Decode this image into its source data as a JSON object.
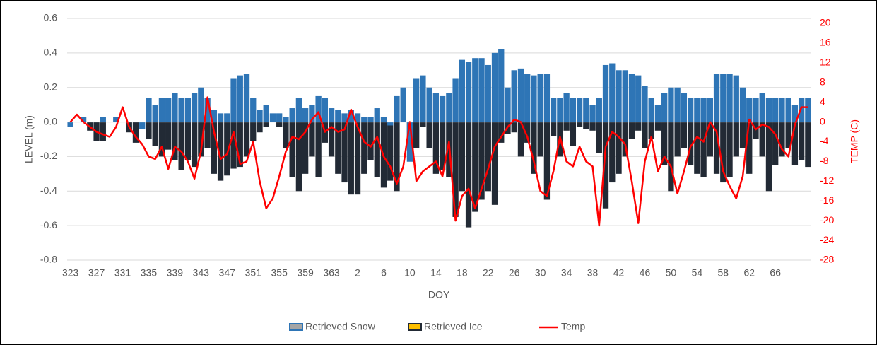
{
  "chart_data": {
    "type": "bar-line",
    "x_label": "DOY",
    "y_label": "LEVEL (m)",
    "y2_label": "TEMP (C)",
    "categories": [
      323,
      null,
      null,
      null,
      327,
      null,
      null,
      null,
      331,
      null,
      null,
      null,
      335,
      null,
      null,
      null,
      339,
      null,
      null,
      null,
      343,
      null,
      null,
      null,
      347,
      null,
      null,
      null,
      351,
      null,
      null,
      null,
      355,
      null,
      null,
      null,
      359,
      null,
      null,
      null,
      363,
      null,
      null,
      null,
      2,
      null,
      null,
      null,
      6,
      null,
      null,
      null,
      10,
      null,
      null,
      null,
      14,
      null,
      null,
      null,
      18,
      null,
      null,
      null,
      22,
      null,
      null,
      null,
      26,
      null,
      null,
      null,
      30,
      null,
      null,
      null,
      34,
      null,
      null,
      null,
      38,
      null,
      null,
      null,
      42,
      null,
      null,
      null,
      46,
      null,
      null,
      null,
      50,
      null,
      null,
      null,
      54,
      null,
      null,
      null,
      58,
      null,
      null,
      null,
      62,
      null,
      null,
      null,
      66,
      null,
      null,
      null,
      null,
      null
    ],
    "series": [
      {
        "name": "Retrieved Snow",
        "color": "#2e75b6",
        "kind": "bar",
        "values": [
          -0.03,
          0,
          0.03,
          0,
          0,
          0.03,
          0,
          0.03,
          0,
          0,
          0,
          -0.04,
          0.14,
          0.1,
          0.14,
          0.14,
          0.17,
          0.14,
          0.14,
          0.17,
          0.2,
          0.14,
          0.07,
          0.05,
          0.05,
          0.25,
          0.27,
          0.28,
          0.14,
          0.07,
          0.1,
          0.05,
          0.05,
          0.03,
          0.08,
          0.14,
          0.08,
          0.1,
          0.15,
          0.14,
          0.08,
          0.07,
          0.05,
          0.07,
          0.05,
          0.03,
          0.03,
          0.08,
          0.03,
          -0.02,
          0.15,
          0.2,
          -0.23,
          0.25,
          0.27,
          0.2,
          0.17,
          0.15,
          0.17,
          0.25,
          0.36,
          0.35,
          0.37,
          0.37,
          0.33,
          0.4,
          0.42,
          0.2,
          0.3,
          0.31,
          0.28,
          0.27,
          0.28,
          0.28,
          0.14,
          0.14,
          0.17,
          0.14,
          0.14,
          0.14,
          0.1,
          0.14,
          0.33,
          0.34,
          0.3,
          0.3,
          0.28,
          0.27,
          0.21,
          0.14,
          0.1,
          0.17,
          0.2,
          0.2,
          0.17,
          0.14,
          0.14,
          0.14,
          0.14,
          0.28,
          0.28,
          0.28,
          0.27,
          0.2,
          0.14,
          0.14,
          0.17,
          0.14,
          0.14,
          0.14,
          0.14,
          0.1,
          0.14,
          0.14
        ]
      },
      {
        "name": "Retrieved Ice",
        "color": "#222a35",
        "kind": "bar",
        "values": [
          0,
          0,
          0,
          -0.05,
          -0.11,
          -0.11,
          0,
          0,
          0,
          -0.06,
          -0.12,
          0,
          -0.1,
          -0.14,
          -0.2,
          -0.16,
          -0.22,
          -0.28,
          -0.22,
          -0.26,
          -0.2,
          -0.15,
          -0.3,
          -0.34,
          -0.31,
          -0.27,
          -0.26,
          -0.2,
          -0.11,
          -0.06,
          -0.03,
          0,
          -0.03,
          -0.15,
          -0.32,
          -0.4,
          -0.3,
          -0.2,
          -0.32,
          -0.12,
          -0.2,
          -0.3,
          -0.35,
          -0.42,
          -0.42,
          -0.3,
          -0.22,
          -0.32,
          -0.38,
          -0.34,
          -0.4,
          0,
          -0.1,
          -0.15,
          -0.03,
          -0.15,
          -0.3,
          -0.28,
          -0.32,
          -0.55,
          -0.4,
          -0.61,
          -0.52,
          -0.45,
          -0.4,
          -0.48,
          -0.12,
          -0.07,
          -0.06,
          -0.2,
          -0.12,
          -0.3,
          -0.2,
          -0.45,
          -0.08,
          -0.2,
          -0.05,
          -0.14,
          -0.03,
          -0.04,
          -0.05,
          -0.18,
          -0.5,
          -0.35,
          -0.3,
          -0.2,
          -0.1,
          -0.05,
          -0.15,
          -0.1,
          -0.05,
          -0.25,
          -0.4,
          -0.2,
          -0.15,
          -0.25,
          -0.3,
          -0.32,
          -0.2,
          -0.3,
          -0.35,
          -0.32,
          -0.2,
          -0.15,
          -0.3,
          -0.1,
          -0.2,
          -0.4,
          -0.25,
          -0.2,
          -0.15,
          -0.25,
          -0.22,
          -0.26
        ]
      },
      {
        "name": "Temp",
        "color": "#ff0000",
        "kind": "line",
        "axis": "y2",
        "values": [
          0,
          1.5,
          0,
          -1,
          -2,
          -2.5,
          -3,
          -1,
          3,
          -1,
          -3,
          -4.5,
          -7,
          -7.5,
          -5,
          -9.5,
          -5,
          -6,
          -8,
          -11.5,
          -6,
          5,
          -2,
          -7.5,
          -6.5,
          -2,
          -8.5,
          -8,
          -4,
          -12,
          -17.5,
          -15.5,
          -11,
          -6,
          -3,
          -3.5,
          -2,
          0.5,
          2,
          -2,
          -1,
          -2,
          -1.5,
          2.5,
          -1,
          -4,
          -5,
          -3,
          -7,
          -9,
          -12.5,
          -9,
          0,
          -12,
          -10,
          -9,
          -8,
          -11,
          -4,
          -20,
          -15,
          -13.5,
          -17.5,
          -13.5,
          -9.5,
          -5,
          -3,
          -1,
          0.5,
          0,
          -3,
          -8,
          -14,
          -15,
          -10,
          -3,
          -8,
          -9,
          -5,
          -8,
          -9,
          -21,
          -5,
          -2,
          -3,
          -4.5,
          -12,
          -20.5,
          -8,
          -3,
          -10,
          -7,
          -9,
          -14.5,
          -10,
          -5,
          -3,
          -4,
          0,
          -2,
          -10,
          -13,
          -15.5,
          -11,
          0.5,
          -1.5,
          -0.5,
          -1,
          -2.5,
          -5.5,
          -7,
          -0.5,
          3,
          3
        ]
      }
    ],
    "ylim": [
      -0.8,
      0.6
    ],
    "yticks": [
      {
        "value": -0.8,
        "label": "-0.8"
      },
      {
        "value": -0.6,
        "label": "-0.6"
      },
      {
        "value": -0.4,
        "label": "-0.4"
      },
      {
        "value": -0.2,
        "label": "-0.2"
      },
      {
        "value": 0,
        "label": "0.0"
      },
      {
        "value": 0.2,
        "label": "0.2"
      },
      {
        "value": 0.4,
        "label": "0.4"
      },
      {
        "value": 0.6,
        "label": "0.6"
      }
    ],
    "y2lim": [
      -28,
      21
    ],
    "y2ticks": [
      -28,
      -24,
      -20,
      -16,
      -12,
      -8,
      -4,
      0,
      4,
      8,
      12,
      16,
      20
    ],
    "grid": true
  }
}
